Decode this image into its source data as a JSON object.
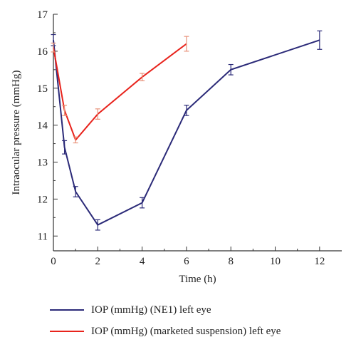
{
  "chart_data": {
    "type": "line",
    "xlabel": "Time (h)",
    "ylabel": "Intraocular pressure (mmHg)",
    "xlim": [
      0,
      13
    ],
    "ylim": [
      10.6,
      17
    ],
    "xticks": [
      0,
      2,
      4,
      6,
      8,
      10,
      12
    ],
    "yticks": [
      11,
      12,
      13,
      14,
      15,
      16,
      17
    ],
    "legend_position": "bottom",
    "series": [
      {
        "name": "IOP (mmHg) (NE1) left eye",
        "color": "#2b2a78",
        "errcolor": "#2b2a78",
        "x": [
          0,
          0.5,
          1,
          2,
          4,
          6,
          8,
          12
        ],
        "y": [
          16.3,
          13.4,
          12.2,
          11.3,
          11.9,
          14.4,
          15.5,
          16.3
        ],
        "err": [
          0.15,
          0.18,
          0.14,
          0.14,
          0.14,
          0.14,
          0.14,
          0.25
        ]
      },
      {
        "name": "IOP (mmHg) (marketed suspension) left eye",
        "color": "#e8231c",
        "errcolor": "#e8927a",
        "x": [
          0,
          0.5,
          1,
          2,
          4,
          6
        ],
        "y": [
          16.1,
          14.4,
          13.6,
          14.3,
          15.3,
          16.2
        ],
        "err": [
          0.12,
          0.14,
          0.08,
          0.14,
          0.1,
          0.2
        ]
      }
    ]
  }
}
